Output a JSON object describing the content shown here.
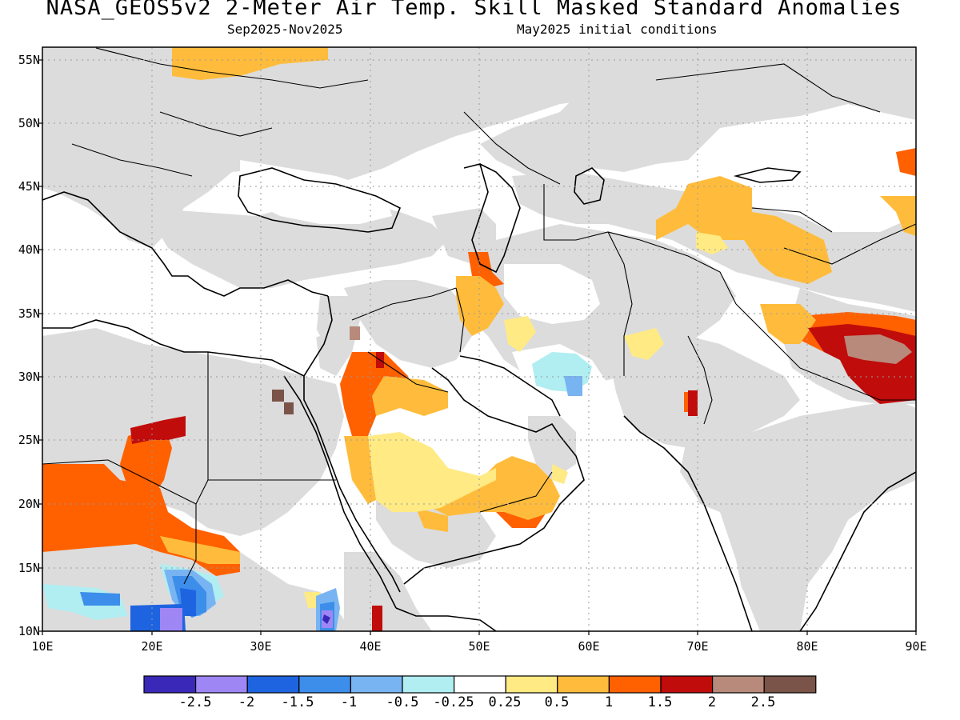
{
  "header": {
    "title": "NASA_GEOS5v2 2-Meter Air Temp. Skill Masked Standard Anomalies",
    "period": "Sep2025-Nov2025",
    "init": "May2025 initial conditions"
  },
  "map": {
    "lon_range": [
      10,
      90
    ],
    "lat_range": [
      10,
      56
    ],
    "lat_labels": [
      "55N",
      "50N",
      "45N",
      "40N",
      "35N",
      "30N",
      "25N",
      "20N",
      "15N",
      "10N"
    ],
    "lon_labels": [
      "10E",
      "20E",
      "30E",
      "40E",
      "50E",
      "60E",
      "70E",
      "80E",
      "90E"
    ]
  },
  "colorbar": {
    "colors": [
      "#3a28b8",
      "#9e86f5",
      "#1e64e0",
      "#3c8eea",
      "#78b4f2",
      "#b0eef2",
      "#ffffff",
      "#ffea84",
      "#ffbc3c",
      "#ff6000",
      "#c00c0a",
      "#b88a7c",
      "#7a5448"
    ],
    "labels": [
      "-2.5",
      "-2",
      "-1.5",
      "-1",
      "-0.5",
      "-0.25",
      "0.25",
      "0.5",
      "1",
      "1.5",
      "2",
      "2.5"
    ]
  }
}
